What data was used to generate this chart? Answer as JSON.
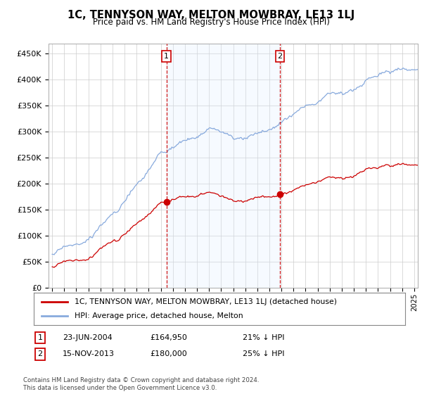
{
  "title": "1C, TENNYSON WAY, MELTON MOWBRAY, LE13 1LJ",
  "subtitle": "Price paid vs. HM Land Registry's House Price Index (HPI)",
  "legend_label1": "1C, TENNYSON WAY, MELTON MOWBRAY, LE13 1LJ (detached house)",
  "legend_label2": "HPI: Average price, detached house, Melton",
  "sale1_date": "23-JUN-2004",
  "sale1_price": 164950,
  "sale1_hpi_text": "21% ↓ HPI",
  "sale2_date": "15-NOV-2013",
  "sale2_price": 180000,
  "sale2_hpi_text": "25% ↓ HPI",
  "footer": "Contains HM Land Registry data © Crown copyright and database right 2024.\nThis data is licensed under the Open Government Licence v3.0.",
  "hpi_color": "#88aadd",
  "property_color": "#cc0000",
  "annotation_border_color": "#cc0000",
  "vline_color": "#cc0000",
  "background_color": "#ffffff",
  "grid_color": "#cccccc",
  "shade_color": "#ddeeff",
  "ylim": [
    0,
    470000
  ],
  "yticks": [
    0,
    50000,
    100000,
    150000,
    200000,
    250000,
    300000,
    350000,
    400000,
    450000
  ],
  "x_start_year": 1995,
  "x_end_year": 2025,
  "sale1_x": 2004.47,
  "sale2_x": 2013.87,
  "sale1_price_val": 164950,
  "sale2_price_val": 180000
}
